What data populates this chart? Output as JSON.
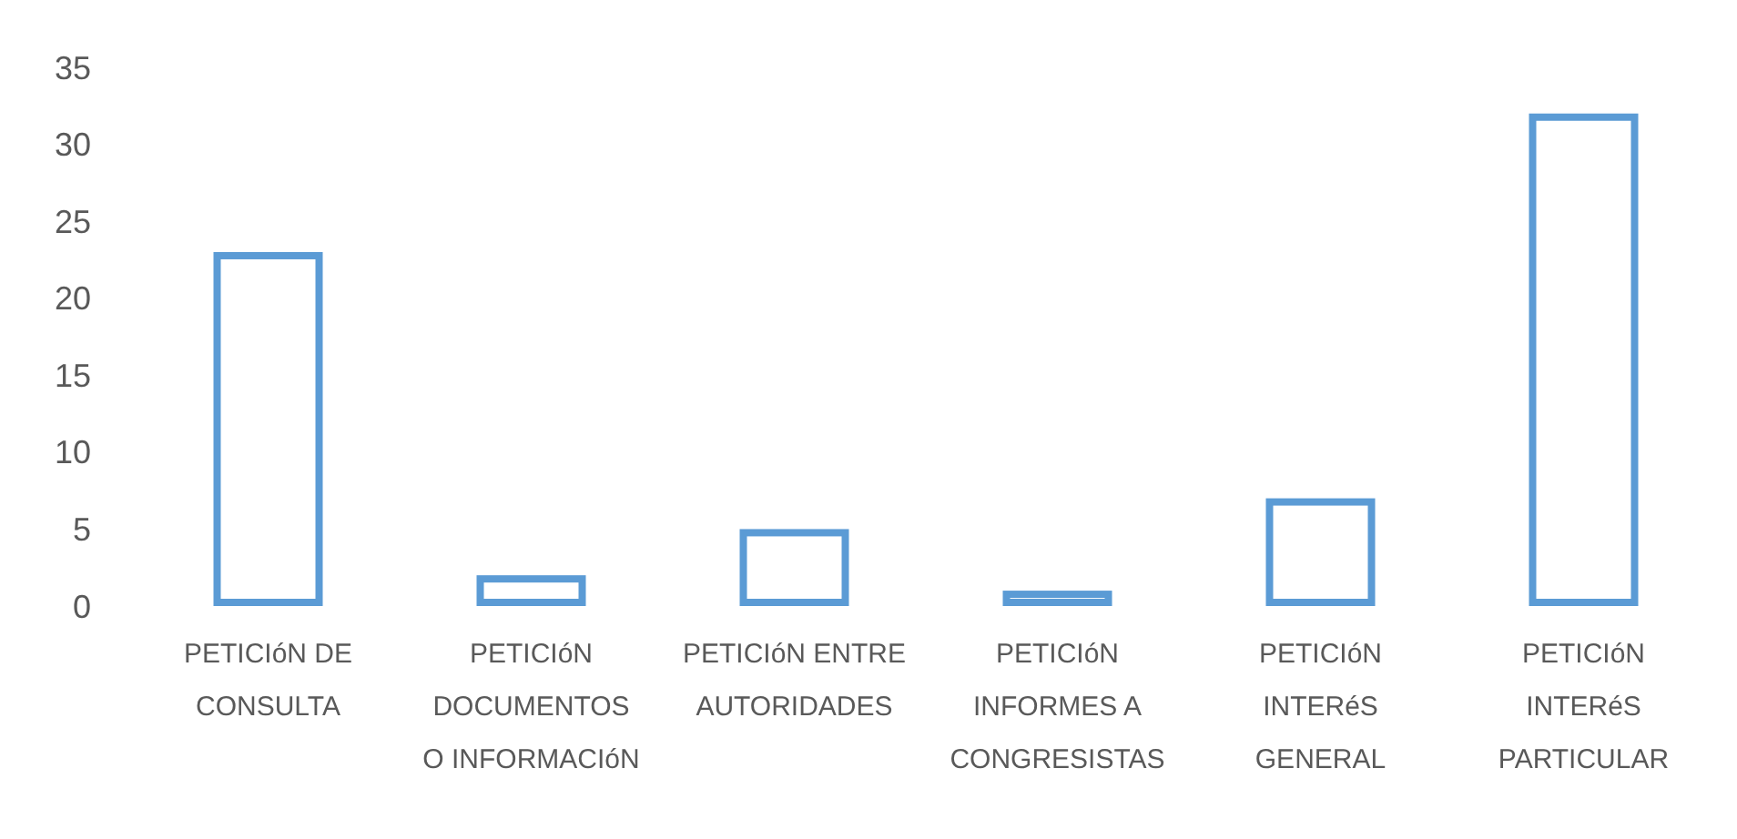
{
  "chart_data": {
    "type": "bar",
    "categories": [
      "PETICIóN DE CONSULTA",
      "PETICIóN DOCUMENTOS O INFORMACIóN",
      "PETICIóN ENTRE AUTORIDADES",
      "PETICIóN INFORMES A CONGRESISTAS",
      "PETICIóN INTERéS GENERAL",
      "PETICIóN INTERéS PARTICULAR"
    ],
    "values": [
      23,
      2,
      5,
      1,
      7,
      32
    ],
    "color": "#5b9bd5",
    "ylim": [
      0,
      35
    ],
    "yticks": [
      0,
      5,
      10,
      15,
      20,
      25,
      30,
      35
    ],
    "grid": false
  }
}
